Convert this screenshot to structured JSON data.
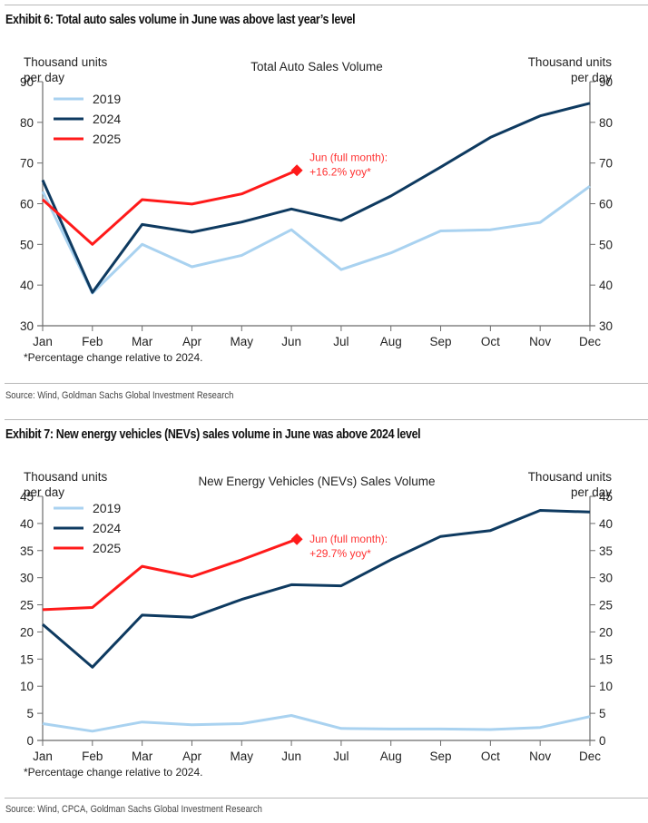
{
  "exhibits": [
    {
      "title": "Exhibit 6: Total auto sales volume in June was above last year’s level",
      "source": "Source: Wind, Goldman Sachs Global Investment Research"
    },
    {
      "title": "Exhibit 7: New energy vehicles (NEVs) sales volume in June was above 2024 level",
      "source": "Source: Wind, CPCA, Goldman Sachs Global Investment Research"
    }
  ],
  "chart_data": [
    {
      "type": "line",
      "title": "Total Auto Sales Volume",
      "ylabel_left": [
        "Thousand units",
        "per day"
      ],
      "ylabel_right": [
        "Thousand units",
        "per day"
      ],
      "xlabel": "",
      "categories": [
        "Jan",
        "Feb",
        "Mar",
        "Apr",
        "May",
        "Jun",
        "Jul",
        "Aug",
        "Sep",
        "Oct",
        "Nov",
        "Dec"
      ],
      "ylim": [
        30,
        90
      ],
      "yticks": [
        30,
        40,
        50,
        60,
        70,
        80,
        90
      ],
      "grid": false,
      "legend": "top-left",
      "series": [
        {
          "name": "2019",
          "color": "#a9d2f0",
          "values": [
            63.0,
            38.0,
            50.0,
            44.5,
            47.3,
            53.6,
            43.8,
            47.9,
            53.3,
            53.6,
            55.4,
            64.3
          ]
        },
        {
          "name": "2024",
          "color": "#0e3a60",
          "values": [
            65.8,
            38.2,
            54.9,
            53.0,
            55.5,
            58.7,
            55.9,
            61.9,
            69.0,
            76.3,
            81.6,
            84.7
          ]
        },
        {
          "name": "2025",
          "color": "#ff1a1a",
          "values": [
            61.0,
            50.0,
            61.0,
            59.9,
            62.4,
            68.2
          ]
        }
      ],
      "annotation": {
        "lines": [
          "Jun (full month):",
          "+16.2% yoy*"
        ],
        "color": "#ff3333",
        "marker": "diamond",
        "series": "2025",
        "category": "Jun",
        "value": 68.2
      },
      "footnote": "*Percentage change relative to 2024."
    },
    {
      "type": "line",
      "title": "New Energy Vehicles (NEVs) Sales Volume",
      "ylabel_left": [
        "Thousand units",
        "per day"
      ],
      "ylabel_right": [
        "Thousand units",
        "per day"
      ],
      "xlabel": "",
      "categories": [
        "Jan",
        "Feb",
        "Mar",
        "Apr",
        "May",
        "Jun",
        "Jul",
        "Aug",
        "Sep",
        "Oct",
        "Nov",
        "Dec"
      ],
      "ylim": [
        0,
        45
      ],
      "yticks": [
        0,
        5,
        10,
        15,
        20,
        25,
        30,
        35,
        40,
        45
      ],
      "grid": false,
      "legend": "top-left",
      "series": [
        {
          "name": "2019",
          "color": "#a9d2f0",
          "values": [
            3.1,
            1.7,
            3.4,
            2.9,
            3.1,
            4.6,
            2.2,
            2.1,
            2.1,
            2.0,
            2.4,
            4.4
          ]
        },
        {
          "name": "2024",
          "color": "#0e3a60",
          "values": [
            21.4,
            13.5,
            23.1,
            22.7,
            26.0,
            28.7,
            28.5,
            33.3,
            37.6,
            38.7,
            42.4,
            42.1
          ]
        },
        {
          "name": "2025",
          "color": "#ff1a1a",
          "values": [
            24.1,
            24.5,
            32.1,
            30.2,
            33.3,
            37.1
          ]
        }
      ],
      "annotation": {
        "lines": [
          "Jun (full month):",
          "+29.7% yoy*"
        ],
        "color": "#ff3333",
        "marker": "diamond",
        "series": "2025",
        "category": "Jun",
        "value": 37.1
      },
      "footnote": "*Percentage change relative to 2024."
    }
  ]
}
